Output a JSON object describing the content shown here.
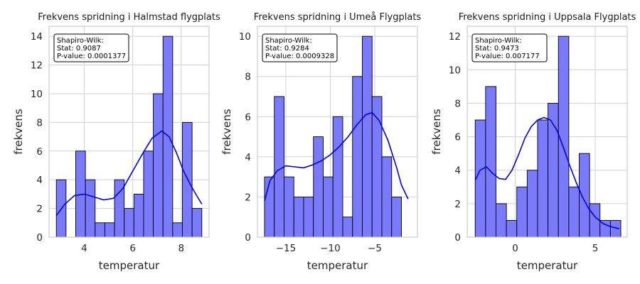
{
  "chart_data": [
    {
      "type": "histogram",
      "title": "Frekvens spridning i Halmstad flygplats",
      "xlabel": "temperatur",
      "ylabel": "frekvens",
      "xlim": [
        2.55,
        9.15
      ],
      "ylim": [
        0,
        14.7
      ],
      "xticks": [
        4,
        6,
        8
      ],
      "yticks": [
        0,
        2,
        4,
        6,
        8,
        10,
        12,
        14
      ],
      "bin_start": 2.85,
      "bin_width": 0.4,
      "counts": [
        4,
        0,
        6,
        4,
        1,
        1,
        4,
        2,
        3,
        6,
        10,
        14,
        1,
        8,
        2
      ],
      "kde": [
        [
          2.85,
          1.5
        ],
        [
          3.2,
          2.3
        ],
        [
          3.6,
          2.9
        ],
        [
          4.0,
          3.0
        ],
        [
          4.4,
          2.8
        ],
        [
          4.8,
          2.6
        ],
        [
          5.2,
          2.7
        ],
        [
          5.6,
          3.4
        ],
        [
          6.0,
          4.6
        ],
        [
          6.4,
          5.8
        ],
        [
          6.8,
          6.9
        ],
        [
          7.2,
          7.4
        ],
        [
          7.5,
          7.0
        ],
        [
          7.8,
          5.9
        ],
        [
          8.1,
          4.6
        ],
        [
          8.4,
          3.6
        ],
        [
          8.6,
          3.0
        ],
        [
          8.85,
          2.3
        ]
      ],
      "legend": {
        "heading": "Shapiro-Wilk:",
        "stat": "Stat: 0.9087",
        "pvalue": "P-value: 0.0001377"
      },
      "grid": true,
      "color": "#7a7aff",
      "kde_color": "#0000e6"
    },
    {
      "type": "histogram",
      "title": "Frekvens spridning i Umeå Flygplats",
      "xlabel": "temperatur",
      "ylabel": "frekvens",
      "xlim": [
        -18.2,
        -0.2
      ],
      "ylim": [
        0,
        10.5
      ],
      "xticks": [
        -15,
        -10,
        -5
      ],
      "yticks": [
        0,
        2,
        4,
        6,
        8,
        10
      ],
      "bin_start": -17.4,
      "bin_width": 1.1,
      "counts": [
        3,
        7,
        3,
        2,
        2,
        5,
        3,
        6,
        1,
        8,
        10,
        7,
        4,
        2
      ],
      "kde": [
        [
          -17.4,
          1.8
        ],
        [
          -16.8,
          2.8
        ],
        [
          -16.0,
          3.3
        ],
        [
          -15.0,
          3.55
        ],
        [
          -14.0,
          3.5
        ],
        [
          -13.0,
          3.45
        ],
        [
          -12.0,
          3.6
        ],
        [
          -11.0,
          3.8
        ],
        [
          -10.0,
          4.1
        ],
        [
          -9.0,
          4.5
        ],
        [
          -8.0,
          5.0
        ],
        [
          -7.0,
          5.6
        ],
        [
          -6.0,
          6.1
        ],
        [
          -5.3,
          6.2
        ],
        [
          -4.5,
          5.8
        ],
        [
          -3.5,
          4.8
        ],
        [
          -2.5,
          3.4
        ],
        [
          -2.0,
          2.6
        ],
        [
          -1.25,
          1.9
        ]
      ],
      "legend": {
        "heading": "Shapiro-Wilk:",
        "stat": "Stat: 0.9284",
        "pvalue": "P-value: 0.0009328"
      },
      "grid": true,
      "color": "#7a7aff",
      "kde_color": "#0000e6"
    },
    {
      "type": "histogram",
      "title": "Frekvens spridning i Uppsala Flygplats",
      "xlabel": "temperatur",
      "ylabel": "frekvens",
      "xlim": [
        -3.0,
        7.0
      ],
      "ylim": [
        0,
        12.6
      ],
      "xticks": [
        0,
        5
      ],
      "yticks": [
        0,
        2,
        4,
        6,
        8,
        10,
        12
      ],
      "bin_start": -2.5,
      "bin_width": 0.65,
      "counts": [
        7,
        9,
        2,
        1,
        3,
        4,
        7,
        8,
        12,
        3,
        5,
        2,
        1,
        1
      ],
      "kde": [
        [
          -2.5,
          3.4
        ],
        [
          -2.2,
          4.0
        ],
        [
          -1.8,
          4.2
        ],
        [
          -1.4,
          3.8
        ],
        [
          -1.0,
          3.5
        ],
        [
          -0.6,
          3.45
        ],
        [
          -0.2,
          4.0
        ],
        [
          0.2,
          4.9
        ],
        [
          0.6,
          5.9
        ],
        [
          1.0,
          6.6
        ],
        [
          1.4,
          7.0
        ],
        [
          1.8,
          7.15
        ],
        [
          2.2,
          7.0
        ],
        [
          2.6,
          6.4
        ],
        [
          3.0,
          5.4
        ],
        [
          3.4,
          4.3
        ],
        [
          3.8,
          3.3
        ],
        [
          4.2,
          2.4
        ],
        [
          4.6,
          1.7
        ],
        [
          5.0,
          1.2
        ],
        [
          5.5,
          0.8
        ],
        [
          6.0,
          0.62
        ],
        [
          6.5,
          0.5
        ]
      ],
      "legend": {
        "heading": "Shapiro-Wilk:",
        "stat": "Stat: 0.9473",
        "pvalue": "P-value: 0.007177"
      },
      "grid": true,
      "color": "#7a7aff",
      "kde_color": "#0000e6"
    }
  ]
}
